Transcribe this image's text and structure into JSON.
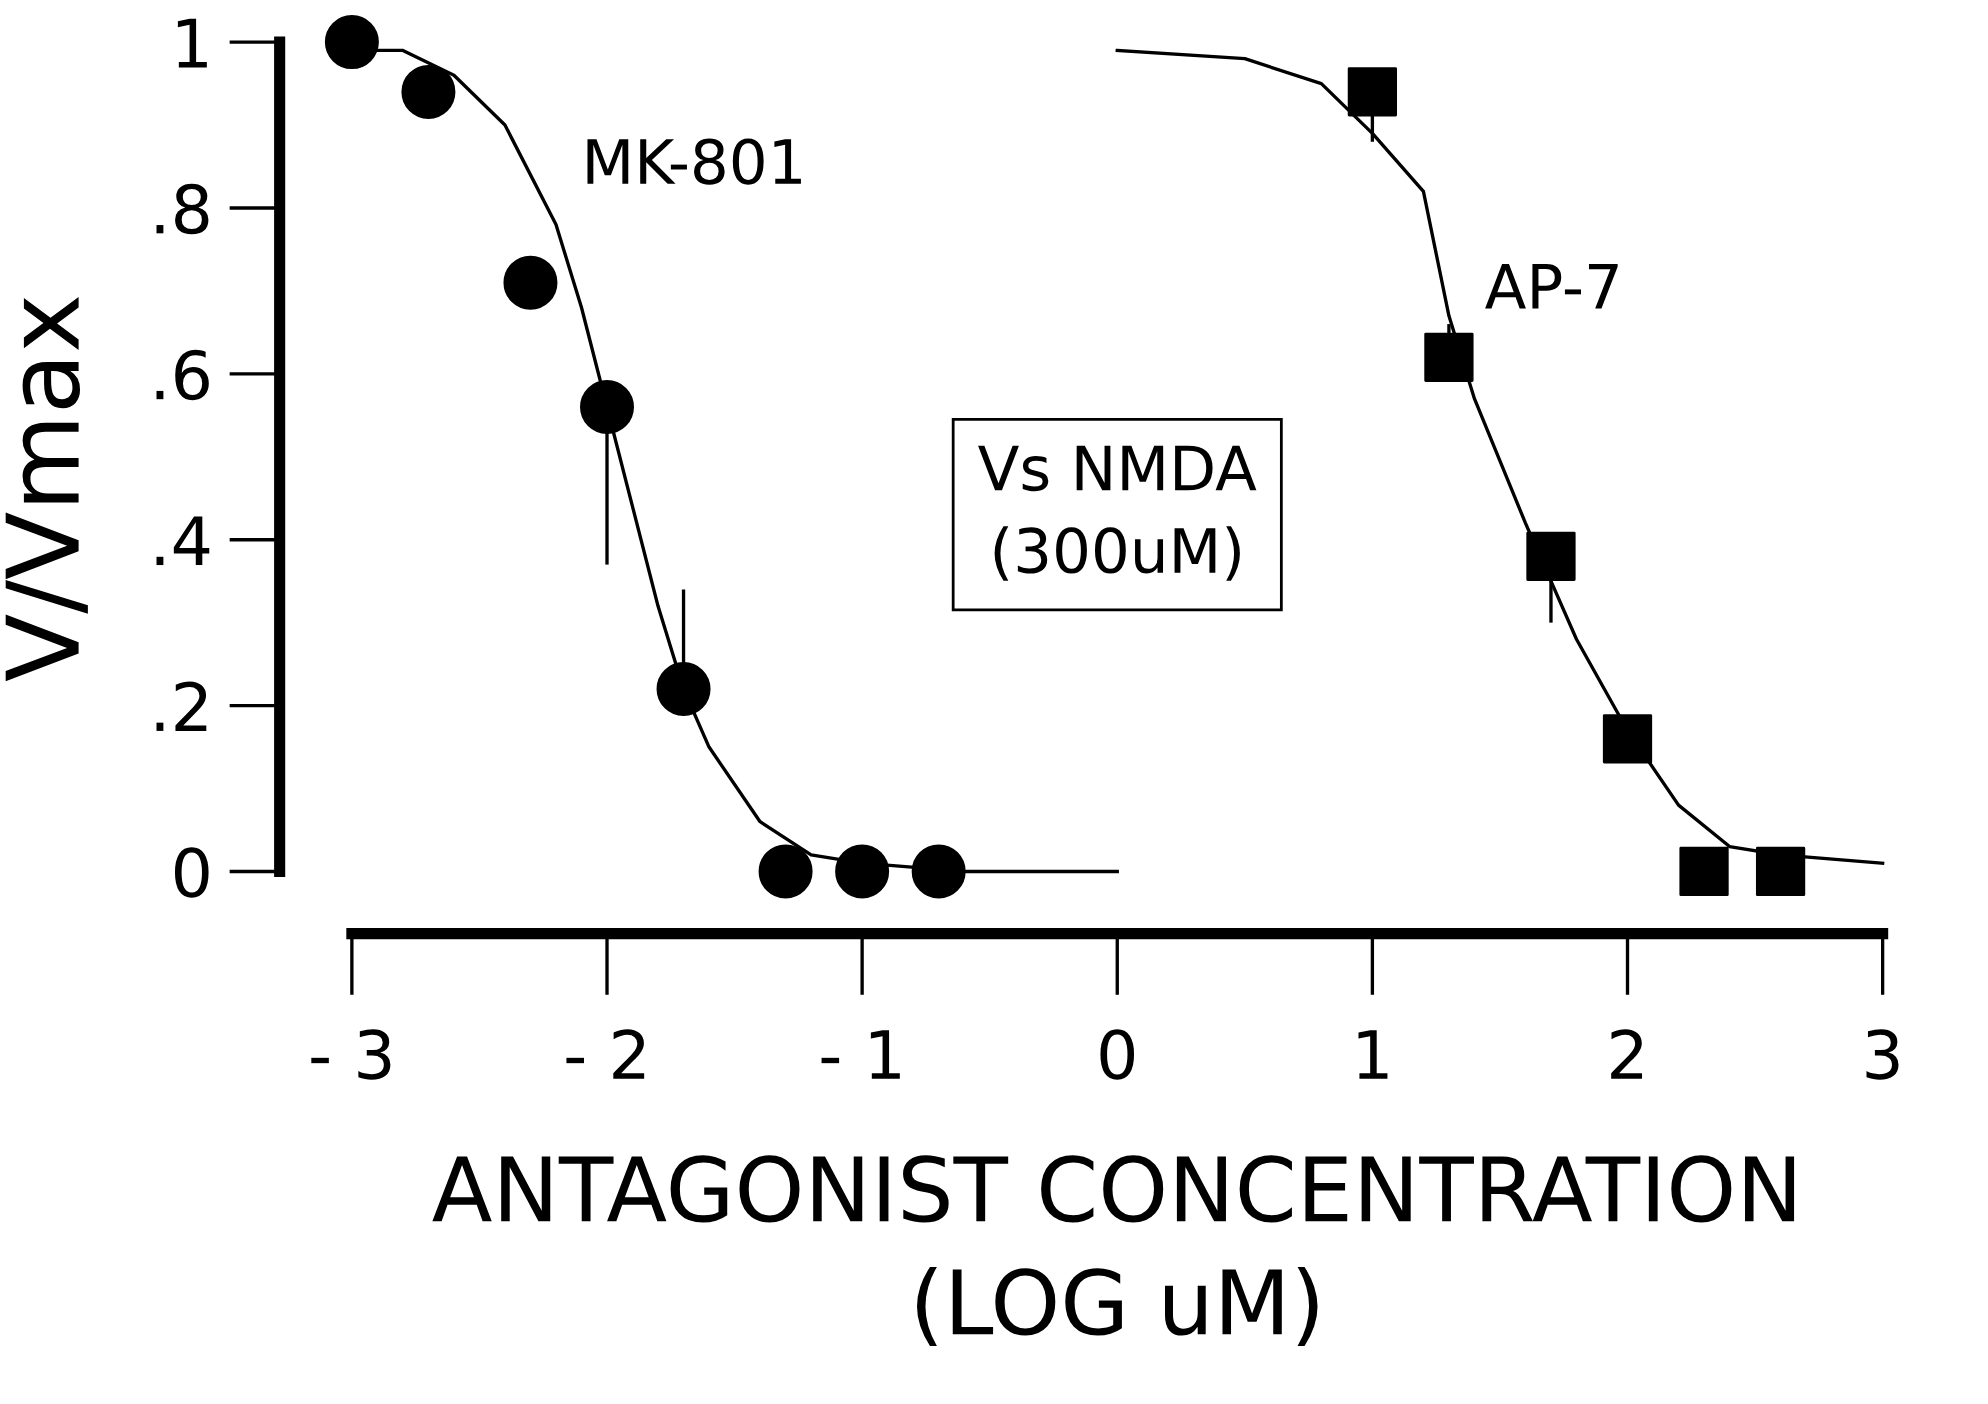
{
  "chart_data": {
    "type": "scatter",
    "xlabel": "ANTAGONIST CONCENTRATION\n(LOG uM)",
    "ylabel": "V/Vmax",
    "xlim": [
      -3,
      3
    ],
    "ylim": [
      -0.075,
      1
    ],
    "xticks": [
      -3,
      -2,
      -1,
      0,
      1,
      2,
      3
    ],
    "yticks": [
      0,
      {
        "value": 0.2,
        "label": ".2"
      },
      {
        "value": 0.4,
        "label": ".4"
      },
      {
        "value": 0.6,
        "label": ".6"
      },
      {
        "value": 0.8,
        "label": ".8"
      },
      1
    ],
    "grid": false,
    "legend": false,
    "series": [
      {
        "marker": "circle",
        "color": "#000000",
        "x": [
          -3,
          -2.7,
          -2.3,
          -2.0,
          -1.7,
          -1.3,
          -1.0,
          -0.7
        ],
        "values": [
          1.0,
          0.94,
          0.71,
          0.56,
          0.22,
          0,
          0,
          0
        ],
        "errors": [
          null,
          null,
          null,
          [
            0.37,
            0.56
          ],
          [
            0.22,
            0.34
          ],
          null,
          null,
          null
        ]
      },
      {
        "type": "line",
        "marker": "none",
        "line_style": "solid",
        "color": "#000000",
        "x": [
          -3,
          -2.8,
          -2.6,
          -2.4,
          -2.2,
          -2.1,
          -2.0,
          -1.9,
          -1.8,
          -1.7,
          -1.6,
          -1.4,
          -1.2,
          -1.0,
          -0.6,
          0
        ],
        "values": [
          0.99,
          0.99,
          0.96,
          0.9,
          0.78,
          0.68,
          0.56,
          0.44,
          0.32,
          0.22,
          0.15,
          0.06,
          0.02,
          0.01,
          0,
          0
        ]
      },
      {
        "marker": "square",
        "color": "#000000",
        "x": [
          1.0,
          1.3,
          1.7,
          2.0,
          2.3,
          2.6
        ],
        "values": [
          0.94,
          0.62,
          0.38,
          0.16,
          0,
          0
        ],
        "errors": [
          [
            0.88,
            0.94
          ],
          [
            0.62,
            0.66
          ],
          [
            0.3,
            0.38
          ],
          null,
          null,
          null
        ]
      },
      {
        "type": "line",
        "marker": "none",
        "line_style": "solid",
        "color": "#000000",
        "x": [
          0,
          0.5,
          0.8,
          1.0,
          1.2,
          1.3,
          1.4,
          1.6,
          1.7,
          1.8,
          2.0,
          2.2,
          2.4,
          2.6,
          3.0
        ],
        "values": [
          0.99,
          0.98,
          0.95,
          0.89,
          0.82,
          0.67,
          0.57,
          0.42,
          0.35,
          0.28,
          0.17,
          0.08,
          0.03,
          0.02,
          0.01
        ]
      }
    ],
    "annotations": [
      "MK-801",
      "AP-7",
      "Vs NMDA\n(300uM)"
    ]
  }
}
